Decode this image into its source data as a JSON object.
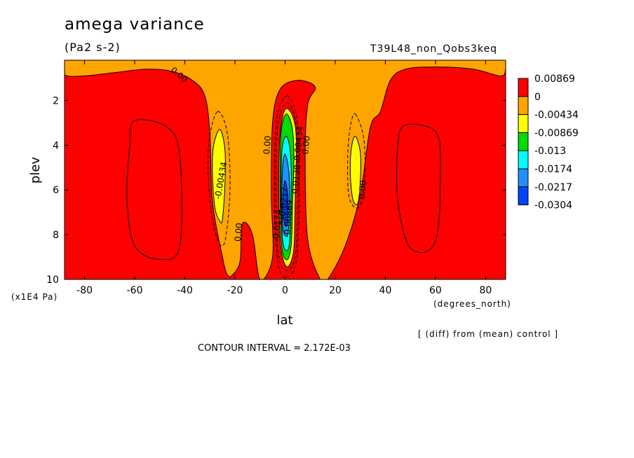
{
  "header": {
    "title": "amega variance",
    "units": "(Pa2 s-2)",
    "run_name": "T39L48_non_Qobs3keq"
  },
  "footer": {
    "note": "[ (diff) from (mean) control ]",
    "contour_interval": "CONTOUR INTERVAL = 2.172E-03"
  },
  "chart_data": {
    "type": "heatmap",
    "title": "amega variance",
    "subtitle": "(Pa2 s-2)",
    "xlabel": "lat",
    "xunit": "(degrees_north)",
    "ylabel": "plev",
    "yunit": "(x1E4 Pa)",
    "xlim": [
      -88,
      88
    ],
    "ylim": [
      10,
      0.2
    ],
    "xticks": [
      -80,
      -60,
      -40,
      -20,
      0,
      20,
      40,
      60,
      80
    ],
    "xtick_labels": [
      "-80",
      "-60",
      "-40",
      "-20",
      "0",
      "20",
      "40",
      "60",
      "80"
    ],
    "yticks": [
      2,
      4,
      6,
      8,
      10
    ],
    "ytick_labels": [
      "2",
      "4",
      "6",
      "8",
      "10"
    ],
    "legend": {
      "position": "right",
      "levels": [
        "0.00869",
        "0",
        "-0.00434",
        "-0.00869",
        "-0.013",
        "-0.0174",
        "-0.0217",
        "-0.0304"
      ],
      "colors": [
        "#ff0000",
        "#ffa500",
        "#ffff00",
        "#00dd00",
        "#00ffff",
        "#1e90ff",
        "#0044ff"
      ]
    },
    "regions": [
      {
        "name": "background",
        "level": "0.00869",
        "color": "#ff0000",
        "points": [
          [
            -88,
            0.2
          ],
          [
            88,
            0.2
          ],
          [
            88,
            10
          ],
          [
            -88,
            10
          ]
        ]
      },
      {
        "name": "upper-band",
        "level": "0",
        "color": "#ffa500",
        "points": [
          [
            -88,
            0.2
          ],
          [
            88,
            0.2
          ],
          [
            88,
            0.6
          ],
          [
            86,
            0.9
          ],
          [
            75,
            0.6
          ],
          [
            60,
            0.5
          ],
          [
            48,
            0.6
          ],
          [
            42,
            1.1
          ],
          [
            38,
            2.5
          ],
          [
            34,
            3.2
          ],
          [
            30,
            6.2
          ],
          [
            24,
            8.5
          ],
          [
            17,
            10
          ],
          [
            14,
            10
          ],
          [
            9,
            8.2
          ],
          [
            8,
            4.5
          ],
          [
            9,
            2.2
          ],
          [
            12,
            1.4
          ],
          [
            5,
            1.1
          ],
          [
            -2,
            1.5
          ],
          [
            -5,
            3
          ],
          [
            -5.5,
            6.2
          ],
          [
            -5,
            9
          ],
          [
            -10,
            10
          ],
          [
            -13,
            8
          ],
          [
            -17,
            7.5
          ],
          [
            -18,
            9.2
          ],
          [
            -21,
            9.8
          ],
          [
            -23,
            9.8
          ],
          [
            -25,
            9
          ],
          [
            -29,
            6.5
          ],
          [
            -30,
            3.5
          ],
          [
            -32,
            1.8
          ],
          [
            -37,
            1.1
          ],
          [
            -45,
            0.7
          ],
          [
            -55,
            0.6
          ],
          [
            -68,
            0.75
          ],
          [
            -80,
            0.9
          ],
          [
            -88,
            0.85
          ]
        ]
      },
      {
        "name": "yellow-west",
        "level": "-0.00434",
        "color": "#ffff00",
        "points": [
          [
            -26,
            3.3
          ],
          [
            -24,
            4.2
          ],
          [
            -24,
            5.8
          ],
          [
            -25,
            7.3
          ],
          [
            -26,
            7.4
          ],
          [
            -28,
            6.8
          ],
          [
            -29,
            5.2
          ],
          [
            -28.5,
            4.0
          ]
        ]
      },
      {
        "name": "yellow-east",
        "level": "-0.00434",
        "color": "#ffff00",
        "points": [
          [
            28,
            3.6
          ],
          [
            30,
            4.3
          ],
          [
            30,
            5.6
          ],
          [
            29,
            6.6
          ],
          [
            27,
            6.4
          ],
          [
            26,
            5.2
          ],
          [
            26.5,
            4.1
          ]
        ]
      },
      {
        "name": "yellow-core",
        "level": "-0.00434",
        "color": "#ffff00",
        "points": [
          [
            0,
            2.4
          ],
          [
            3,
            2.7
          ],
          [
            4.5,
            3.8
          ],
          [
            4,
            6.5
          ],
          [
            3.5,
            8.6
          ],
          [
            1.5,
            9.4
          ],
          [
            -0.5,
            9.2
          ],
          [
            -2,
            8.2
          ],
          [
            -2.5,
            5.5
          ],
          [
            -2,
            3.5
          ]
        ]
      },
      {
        "name": "green-core",
        "level": "-0.00869",
        "color": "#00dd00",
        "points": [
          [
            0.5,
            2.6
          ],
          [
            2.8,
            3.2
          ],
          [
            3.5,
            4.5
          ],
          [
            3,
            6.5
          ],
          [
            2.5,
            8.4
          ],
          [
            1,
            9.1
          ],
          [
            -1,
            8.8
          ],
          [
            -1.8,
            7.5
          ],
          [
            -2,
            5
          ],
          [
            -1.5,
            3.3
          ]
        ]
      },
      {
        "name": "cyan-core",
        "level": "-0.013",
        "color": "#00ffff",
        "points": [
          [
            0.5,
            3.6
          ],
          [
            2,
            4.2
          ],
          [
            2.5,
            5.5
          ],
          [
            2,
            8
          ],
          [
            1,
            8.7
          ],
          [
            -0.8,
            8.4
          ],
          [
            -1.5,
            7
          ],
          [
            -1.5,
            5
          ],
          [
            -1,
            4
          ]
        ]
      },
      {
        "name": "blue-core",
        "level": "-0.0174",
        "color": "#1e90ff",
        "points": [
          [
            0,
            4.4
          ],
          [
            1.5,
            5.2
          ],
          [
            1.8,
            6.8
          ],
          [
            1,
            8
          ],
          [
            -0.8,
            7.8
          ],
          [
            -1.3,
            6.5
          ],
          [
            -1,
            5
          ]
        ]
      },
      {
        "name": "deep-blue-core",
        "level": "-0.0217",
        "color": "#0044ff",
        "points": [
          [
            0,
            5.6
          ],
          [
            1,
            6.2
          ],
          [
            1,
            7.4
          ],
          [
            0,
            7.6
          ],
          [
            -0.8,
            7
          ],
          [
            -0.6,
            6
          ]
        ]
      }
    ],
    "contour_lines": [
      {
        "name": "west-cell",
        "dashed": false,
        "points": [
          [
            -60,
            2.9
          ],
          [
            -47,
            3.2
          ],
          [
            -42,
            4.5
          ],
          [
            -42,
            8.5
          ],
          [
            -50,
            9.1
          ],
          [
            -60,
            8.5
          ],
          [
            -63,
            6.5
          ],
          [
            -62,
            4
          ]
        ]
      },
      {
        "name": "east-cell",
        "dashed": false,
        "points": [
          [
            48,
            3.1
          ],
          [
            60,
            3.4
          ],
          [
            62,
            5
          ],
          [
            60,
            8.3
          ],
          [
            50,
            8.6
          ],
          [
            45,
            6.5
          ],
          [
            45,
            4
          ]
        ]
      },
      {
        "name": "dash-west-outer",
        "dashed": true,
        "points": [
          [
            -27,
            2.5
          ],
          [
            -23,
            3.5
          ],
          [
            -22,
            6
          ],
          [
            -24,
            8.3
          ],
          [
            -27,
            8.2
          ],
          [
            -30,
            6.5
          ],
          [
            -30.5,
            4
          ]
        ]
      },
      {
        "name": "dash-east-outer",
        "dashed": true,
        "points": [
          [
            28,
            2.6
          ],
          [
            31.5,
            3.8
          ],
          [
            31.5,
            6
          ],
          [
            29,
            6.8
          ],
          [
            25.5,
            6.3
          ],
          [
            25,
            4.5
          ],
          [
            26,
            3.2
          ]
        ]
      },
      {
        "name": "dash-core-1",
        "dashed": true,
        "points": [
          [
            0.5,
            1.8
          ],
          [
            4,
            2.4
          ],
          [
            5.5,
            4
          ],
          [
            5.5,
            7
          ],
          [
            4.5,
            9.2
          ],
          [
            1,
            9.9
          ],
          [
            -2.5,
            9.5
          ],
          [
            -4,
            7.5
          ],
          [
            -4.2,
            4.5
          ],
          [
            -3,
            2.6
          ]
        ]
      },
      {
        "name": "dash-core-2",
        "dashed": true,
        "points": [
          [
            0.5,
            2.1
          ],
          [
            3.5,
            2.6
          ],
          [
            5,
            4
          ],
          [
            5,
            7
          ],
          [
            4,
            9
          ],
          [
            1,
            9.6
          ],
          [
            -2.2,
            9.2
          ],
          [
            -3.4,
            7.5
          ],
          [
            -3.6,
            4.5
          ],
          [
            -2.5,
            2.9
          ]
        ]
      }
    ],
    "contour_labels": [
      {
        "text": "0.00",
        "x": -43,
        "y": 0.95,
        "rotate": 40
      },
      {
        "text": "-0.00434",
        "x": -24.5,
        "y": 5.6,
        "rotate": -80
      },
      {
        "text": "0.00",
        "x": -17.5,
        "y": 7.9,
        "rotate": -85
      },
      {
        "text": "0.00",
        "x": -6,
        "y": 4.0,
        "rotate": -85
      },
      {
        "text": "0.00",
        "x": 9.5,
        "y": 4.0,
        "rotate": -85
      },
      {
        "text": "0.00",
        "x": 32,
        "y": 6.0,
        "rotate": -85
      },
      {
        "text": "-0.0217",
        "x": 0.5,
        "y": 6.6,
        "rotate": -85
      },
      {
        "text": "-0.00434",
        "x": 6.5,
        "y": 4.0,
        "rotate": -85
      },
      {
        "text": "-0.00869",
        "x": 2.5,
        "y": 7.3,
        "rotate": -85
      },
      {
        "text": "-0.0130",
        "x": 5.5,
        "y": 5.6,
        "rotate": -85
      },
      {
        "text": "-0.0174",
        "x": -2,
        "y": 7.6,
        "rotate": -85
      }
    ]
  }
}
